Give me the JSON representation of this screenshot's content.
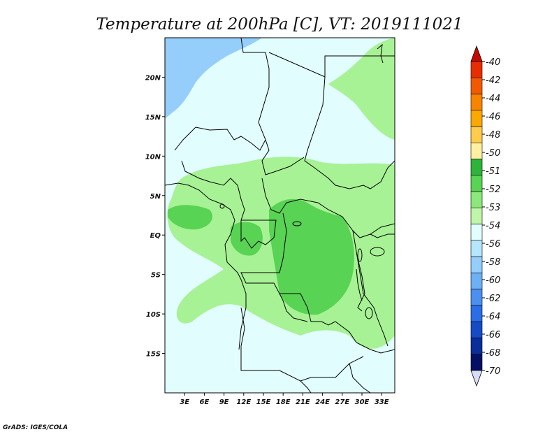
{
  "chart_data": {
    "type": "heatmap",
    "title": "Temperature at 200hPa [C], VT: 2019111021",
    "x_ticks": [
      "3E",
      "6E",
      "9E",
      "12E",
      "15E",
      "18E",
      "21E",
      "24E",
      "27E",
      "30E",
      "33E"
    ],
    "x_tick_values": [
      3,
      6,
      9,
      12,
      15,
      18,
      21,
      24,
      27,
      30,
      33
    ],
    "y_ticks": [
      "20N",
      "15N",
      "10N",
      "5N",
      "EQ",
      "5S",
      "10S",
      "15S"
    ],
    "y_tick_values": [
      20,
      15,
      10,
      5,
      0,
      -5,
      -10,
      -15
    ],
    "xlim": [
      0,
      35
    ],
    "ylim": [
      -20,
      25
    ],
    "colorbar": {
      "labels": [
        "-40",
        "-42",
        "-44",
        "-46",
        "-48",
        "-50",
        "-51",
        "-52",
        "-53",
        "-54",
        "-56",
        "-58",
        "-60",
        "-62",
        "-64",
        "-66",
        "-68",
        "-70"
      ],
      "colors": [
        "#e82e00",
        "#f35a00",
        "#f88400",
        "#fba800",
        "#fdcc4c",
        "#fff0a2",
        "#2db43a",
        "#58d354",
        "#8de87b",
        "#c0f6aa",
        "#e2fdfd",
        "#b5e6fd",
        "#95cefb",
        "#6cb0f5",
        "#4b8ff0",
        "#2a6de6",
        "#164bc7",
        "#0a2d9c",
        "#040f66"
      ],
      "top_arrow_color": "#c30a00",
      "bottom_arrow_color": "#d8dcf8"
    },
    "regions": {
      "north_cold": {
        "level": "-56",
        "color": "#95cefb"
      },
      "background": {
        "level": "-54 to -53",
        "color": "#e2fdfd"
      },
      "warm_band": {
        "level": "-53 to -52",
        "color": "#a7f294"
      },
      "core": {
        "level": "-52 to -51",
        "color": "#58d354"
      }
    }
  },
  "credit": "GrADS: IGES/COLA"
}
